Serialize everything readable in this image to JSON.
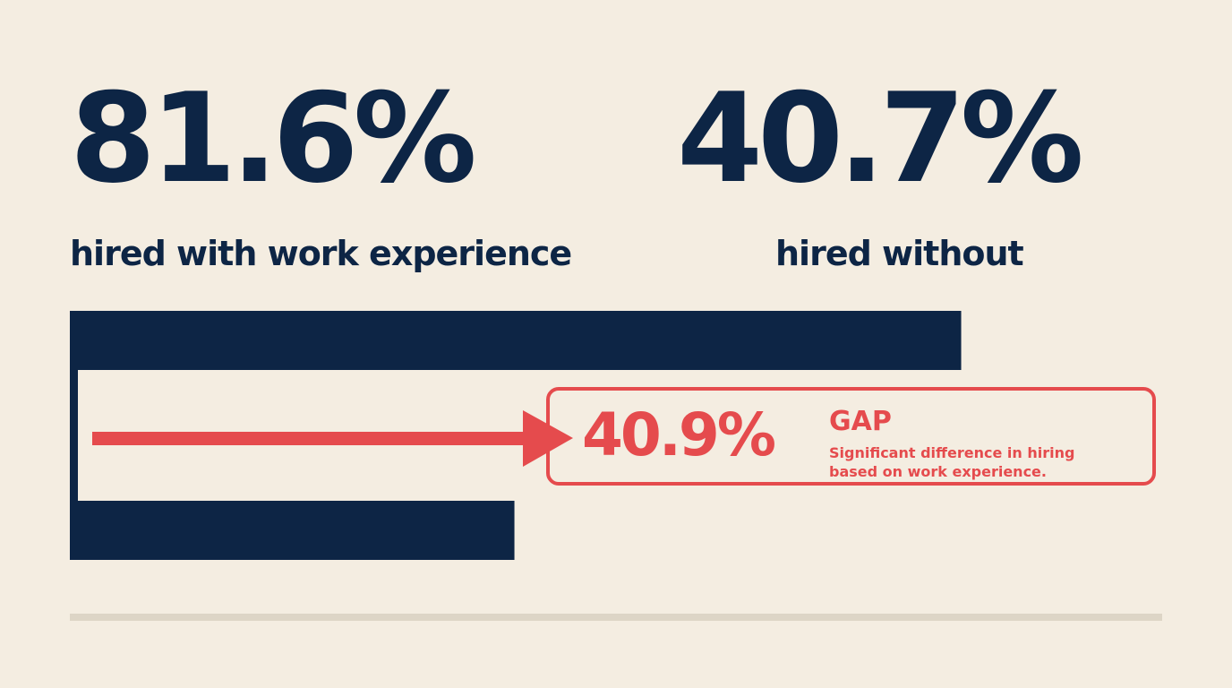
{
  "colors": {
    "background": "#f4ede1",
    "navy": "#0d2545",
    "accent": "#e54b4d",
    "divider": "#ddd5c6"
  },
  "stats": {
    "left": {
      "value": "81.6%",
      "label": "hired with work experience"
    },
    "right": {
      "value": "40.7%",
      "label": "hired without"
    }
  },
  "gap": {
    "value": "40.9%",
    "title": "GAP",
    "description": "Significant difference in hiring based on work experience."
  },
  "chart_data": {
    "type": "bar",
    "orientation": "horizontal",
    "categories": [
      "hired with work experience",
      "hired without"
    ],
    "values": [
      81.6,
      40.7
    ],
    "unit": "%",
    "xlim": [
      0,
      100
    ],
    "grid": false,
    "legend": "none",
    "annotation": {
      "type": "gap",
      "value": 40.9
    }
  }
}
